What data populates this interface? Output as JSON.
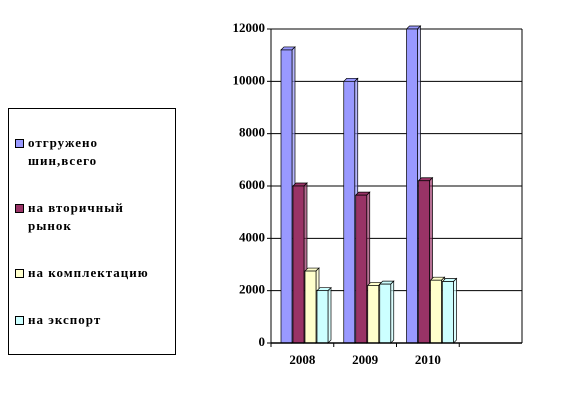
{
  "chart_data": {
    "type": "bar",
    "categories": [
      "2008",
      "2009",
      "2010",
      null
    ],
    "series": [
      {
        "name": "отгружено шин,всего",
        "color": "#9999ff",
        "values": [
          11200,
          10000,
          12000,
          null
        ]
      },
      {
        "name": "на вторичный рынок",
        "color": "#993366",
        "values": [
          6000,
          5650,
          6200,
          null
        ]
      },
      {
        "name": "на комплектацию",
        "color": "#ffffcc",
        "values": [
          2750,
          2200,
          2400,
          null
        ]
      },
      {
        "name": "на экспорт",
        "color": "#ccffff",
        "values": [
          2000,
          2250,
          2350,
          null
        ]
      }
    ],
    "ylim": [
      0,
      12000
    ],
    "yticks": [
      0,
      2000,
      4000,
      6000,
      8000,
      10000,
      12000
    ],
    "grid": true,
    "legend": "left"
  }
}
